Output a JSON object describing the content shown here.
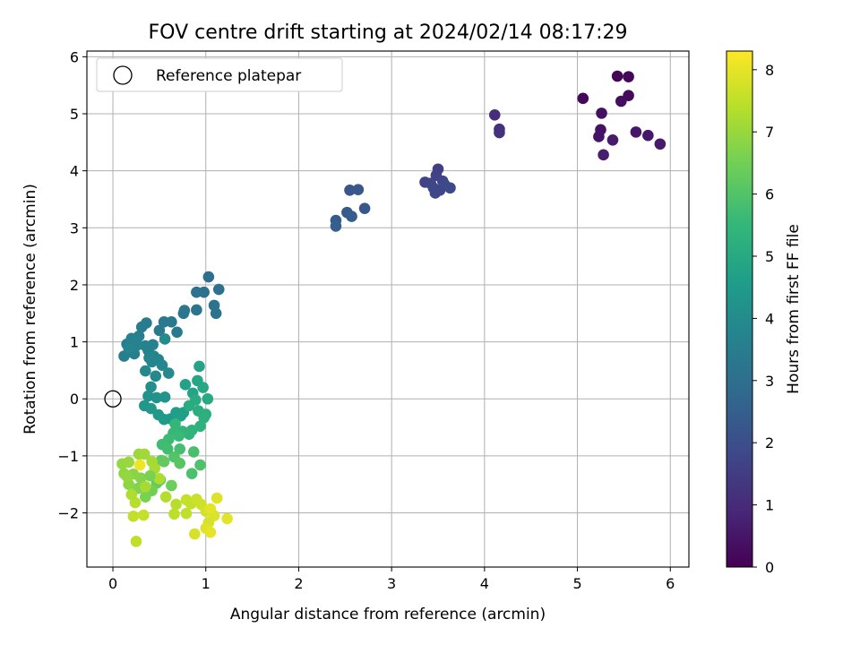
{
  "chart_data": {
    "type": "scatter",
    "title": "FOV centre drift starting at 2024/02/14 08:17:29",
    "xlabel": "Angular distance from reference (arcmin)",
    "ylabel": "Rotation from reference (arcmin)",
    "xlim": [
      -0.28,
      6.2
    ],
    "ylim": [
      -2.95,
      6.1
    ],
    "xticks": [
      0,
      1,
      2,
      3,
      4,
      5,
      6
    ],
    "yticks": [
      -2,
      -1,
      0,
      1,
      2,
      3,
      4,
      5,
      6
    ],
    "grid": true,
    "legend": {
      "placement": "top-left",
      "entries": [
        "Reference platepar"
      ]
    },
    "reference_point": {
      "x": 0,
      "y": 0
    },
    "colorbar": {
      "label": "Hours from first FF file",
      "range": [
        0,
        8.3
      ],
      "ticks": [
        0,
        1,
        2,
        3,
        4,
        5,
        6,
        7,
        8
      ],
      "colormap": "viridis"
    },
    "points": [
      [
        5.43,
        5.66,
        0.1
      ],
      [
        5.55,
        5.65,
        0.15
      ],
      [
        5.06,
        5.27,
        0.2
      ],
      [
        5.55,
        5.32,
        0.25
      ],
      [
        5.47,
        5.22,
        0.3
      ],
      [
        5.26,
        5.01,
        0.35
      ],
      [
        5.25,
        4.72,
        0.4
      ],
      [
        5.23,
        4.6,
        0.45
      ],
      [
        5.63,
        4.68,
        0.5
      ],
      [
        5.76,
        4.62,
        0.55
      ],
      [
        5.89,
        4.47,
        0.6
      ],
      [
        5.38,
        4.54,
        0.65
      ],
      [
        5.28,
        4.28,
        0.7
      ],
      [
        4.11,
        4.98,
        1.1
      ],
      [
        4.16,
        4.73,
        1.15
      ],
      [
        4.16,
        4.67,
        1.2
      ],
      [
        3.5,
        4.03,
        1.6
      ],
      [
        3.48,
        3.92,
        1.65
      ],
      [
        3.36,
        3.8,
        1.7
      ],
      [
        3.42,
        3.78,
        1.72
      ],
      [
        3.55,
        3.82,
        1.75
      ],
      [
        3.45,
        3.7,
        1.78
      ],
      [
        3.52,
        3.66,
        1.8
      ],
      [
        3.47,
        3.61,
        1.82
      ],
      [
        3.63,
        3.7,
        1.85
      ],
      [
        3.57,
        3.76,
        1.88
      ],
      [
        2.55,
        3.66,
        2.2
      ],
      [
        2.64,
        3.67,
        2.25
      ],
      [
        2.71,
        3.34,
        2.3
      ],
      [
        2.52,
        3.27,
        2.35
      ],
      [
        2.57,
        3.2,
        2.4
      ],
      [
        2.4,
        3.13,
        2.45
      ],
      [
        2.4,
        3.03,
        2.5
      ],
      [
        1.03,
        2.14,
        3.0
      ],
      [
        1.14,
        1.92,
        3.05
      ],
      [
        0.98,
        1.87,
        3.1
      ],
      [
        0.9,
        1.87,
        3.12
      ],
      [
        1.09,
        1.64,
        3.15
      ],
      [
        1.11,
        1.5,
        3.18
      ],
      [
        0.9,
        1.56,
        3.2
      ],
      [
        0.76,
        1.5,
        3.25
      ],
      [
        0.77,
        1.55,
        3.3
      ],
      [
        0.63,
        1.35,
        3.35
      ],
      [
        0.55,
        1.35,
        3.38
      ],
      [
        0.5,
        1.2,
        3.4
      ],
      [
        0.69,
        1.17,
        3.42
      ],
      [
        0.36,
        1.33,
        3.45
      ],
      [
        0.31,
        1.26,
        3.48
      ],
      [
        0.28,
        1.1,
        3.5
      ],
      [
        0.2,
        1.04,
        3.52
      ],
      [
        0.15,
        0.96,
        3.55
      ],
      [
        0.12,
        0.75,
        3.58
      ],
      [
        0.23,
        0.79,
        3.6
      ],
      [
        0.38,
        0.85,
        3.62
      ],
      [
        0.43,
        0.95,
        3.64
      ],
      [
        0.2,
        1.06,
        3.66
      ],
      [
        0.25,
        1.0,
        3.68
      ],
      [
        0.26,
        0.94,
        3.7
      ],
      [
        0.35,
        0.93,
        3.72
      ],
      [
        0.17,
        0.89,
        3.74
      ],
      [
        0.44,
        0.75,
        3.76
      ],
      [
        0.49,
        0.69,
        3.78
      ],
      [
        0.39,
        0.72,
        3.8
      ],
      [
        0.42,
        0.65,
        3.82
      ],
      [
        0.53,
        0.59,
        3.85
      ],
      [
        0.35,
        0.49,
        3.88
      ],
      [
        0.46,
        0.4,
        3.9
      ],
      [
        0.6,
        0.45,
        3.95
      ],
      [
        0.56,
        1.05,
        4.0
      ],
      [
        0.41,
        0.21,
        4.1
      ],
      [
        0.38,
        0.05,
        4.2
      ],
      [
        0.47,
        0.02,
        4.25
      ],
      [
        0.56,
        0.03,
        4.3
      ],
      [
        0.34,
        -0.12,
        4.35
      ],
      [
        0.41,
        -0.17,
        4.4
      ],
      [
        0.49,
        -0.28,
        4.45
      ],
      [
        0.55,
        -0.36,
        4.5
      ],
      [
        0.62,
        -0.35,
        4.55
      ],
      [
        0.68,
        -0.24,
        4.6
      ],
      [
        0.76,
        -0.24,
        4.65
      ],
      [
        0.73,
        -0.3,
        4.7
      ],
      [
        0.78,
        0.25,
        4.75
      ],
      [
        0.86,
        0.1,
        4.8
      ],
      [
        0.93,
        0.57,
        4.85
      ],
      [
        0.91,
        0.32,
        4.9
      ],
      [
        0.97,
        0.2,
        4.95
      ],
      [
        1.02,
        0.0,
        5.0
      ],
      [
        0.89,
        -0.02,
        5.05
      ],
      [
        0.82,
        -0.12,
        5.1
      ],
      [
        0.92,
        -0.21,
        5.15
      ],
      [
        1.0,
        -0.27,
        5.2
      ],
      [
        0.98,
        -0.33,
        5.25
      ],
      [
        0.94,
        -0.48,
        5.3
      ],
      [
        0.85,
        -0.55,
        5.35
      ],
      [
        0.82,
        -0.62,
        5.4
      ],
      [
        0.75,
        -0.57,
        5.45
      ],
      [
        0.67,
        -0.44,
        5.5
      ],
      [
        0.65,
        -0.6,
        5.55
      ],
      [
        0.71,
        -0.65,
        5.6
      ],
      [
        0.6,
        -0.71,
        5.65
      ],
      [
        0.53,
        -0.8,
        5.7
      ],
      [
        0.59,
        -0.88,
        5.75
      ],
      [
        0.72,
        -0.88,
        5.8
      ],
      [
        0.87,
        -0.93,
        5.85
      ],
      [
        0.85,
        -1.31,
        5.9
      ],
      [
        0.94,
        -1.16,
        5.95
      ],
      [
        0.66,
        -1.02,
        6.0
      ],
      [
        0.72,
        -1.13,
        6.1
      ],
      [
        0.52,
        -1.08,
        6.2
      ],
      [
        0.51,
        -1.42,
        6.3
      ],
      [
        0.47,
        -1.48,
        6.35
      ],
      [
        0.63,
        -1.52,
        6.4
      ],
      [
        0.42,
        -1.61,
        6.5
      ],
      [
        0.35,
        -1.72,
        6.6
      ],
      [
        0.27,
        -1.57,
        6.7
      ],
      [
        0.3,
        -1.39,
        6.75
      ],
      [
        0.22,
        -1.32,
        6.8
      ],
      [
        0.17,
        -1.5,
        6.85
      ],
      [
        0.12,
        -1.31,
        6.9
      ],
      [
        0.1,
        -1.14,
        6.95
      ],
      [
        0.17,
        -1.11,
        7.0
      ],
      [
        0.28,
        -0.97,
        7.05
      ],
      [
        0.34,
        -0.97,
        7.1
      ],
      [
        0.42,
        -1.1,
        7.15
      ],
      [
        0.45,
        -1.22,
        7.2
      ],
      [
        0.5,
        -1.4,
        7.3
      ],
      [
        0.57,
        -1.72,
        7.35
      ],
      [
        0.68,
        -1.85,
        7.4
      ],
      [
        0.66,
        -2.02,
        7.45
      ],
      [
        0.79,
        -2.01,
        7.5
      ],
      [
        0.84,
        -1.84,
        7.55
      ],
      [
        0.79,
        -1.77,
        7.6
      ],
      [
        0.9,
        -1.76,
        7.65
      ],
      [
        0.95,
        -1.85,
        7.7
      ],
      [
        1.0,
        -1.97,
        7.75
      ],
      [
        1.03,
        -2.17,
        7.8
      ],
      [
        1.09,
        -2.05,
        7.85
      ],
      [
        1.12,
        -1.74,
        7.9
      ],
      [
        1.05,
        -1.93,
        7.95
      ],
      [
        0.88,
        -2.37,
        7.8
      ],
      [
        1.0,
        -2.27,
        7.9
      ],
      [
        1.05,
        -2.34,
        8.0
      ],
      [
        1.23,
        -2.1,
        7.95
      ],
      [
        0.22,
        -2.06,
        7.55
      ],
      [
        0.33,
        -2.04,
        7.6
      ],
      [
        0.25,
        -2.5,
        7.5
      ],
      [
        0.35,
        -1.54,
        7.2
      ],
      [
        0.24,
        -1.82,
        7.4
      ],
      [
        0.2,
        -1.68,
        7.3
      ],
      [
        0.29,
        -1.16,
        8.1
      ],
      [
        0.15,
        -1.36,
        6.95
      ],
      [
        0.4,
        -1.35,
        6.6
      ],
      [
        0.55,
        -1.1,
        6.25
      ]
    ]
  }
}
